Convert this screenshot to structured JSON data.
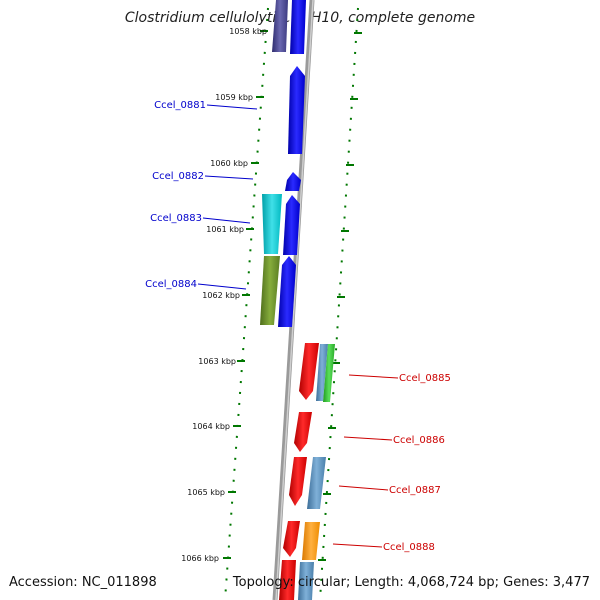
{
  "title": "Clostridium cellulolyticum H10, complete genome",
  "accession": "Accession: NC_011898",
  "topology": "Topology: circular; Length: 4,068,724 bp; Genes: 3,477",
  "colors": {
    "left_label": "#0000cc",
    "right_label": "#cc0000",
    "tick": "#007700",
    "backbone": "#888888"
  },
  "ticks": [
    {
      "label": "1058 kbp"
    },
    {
      "label": "1059 kbp"
    },
    {
      "label": "1060 kbp"
    },
    {
      "label": "1061 kbp"
    },
    {
      "label": "1062 kbp"
    },
    {
      "label": "1063 kbp"
    },
    {
      "label": "1064 kbp"
    },
    {
      "label": "1065 kbp"
    },
    {
      "label": "1066 kbp"
    }
  ],
  "gene_labels": {
    "left": [
      "Ccel_0881",
      "Ccel_0882",
      "Ccel_0883",
      "Ccel_0884"
    ],
    "right": [
      "Ccel_0885",
      "Ccel_0886",
      "Ccel_0887",
      "Ccel_0888"
    ]
  }
}
